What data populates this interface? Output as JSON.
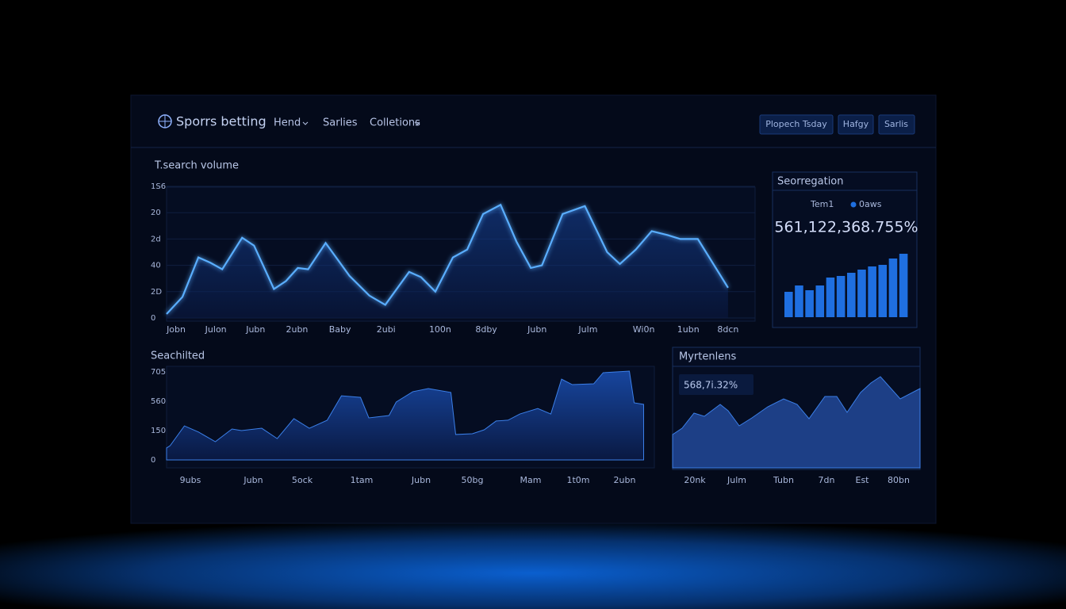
{
  "header": {
    "brand": "Sporrs betting",
    "nav": [
      "Hend",
      "Sarlies",
      "Colletions"
    ],
    "buttons": [
      "Plopech Tsday",
      "Hafgy",
      "Sarlis"
    ]
  },
  "chart_data": [
    {
      "type": "line",
      "title": "T.search volume",
      "color": "#5aaeff",
      "grid": true,
      "x": [
        0,
        1,
        2,
        2.75,
        3.5,
        4.75,
        5.5,
        6.75,
        7.5,
        8.25,
        8.9,
        10,
        11.5,
        12.75,
        13.75,
        15.25,
        16,
        16.9,
        18,
        18.9,
        19.9,
        21,
        22,
        22.9,
        23.6,
        24.9,
        26.3,
        27.7,
        28.5,
        29.5,
        30.5,
        31.5,
        32.3,
        33.4,
        35.3
      ],
      "values": [
        3,
        16,
        46,
        42,
        37,
        61,
        55,
        22,
        28,
        38,
        37,
        57,
        32,
        17,
        10,
        35,
        31,
        20,
        46,
        52,
        79,
        86,
        58,
        38,
        40,
        79,
        85,
        50,
        41,
        52,
        66,
        63,
        60,
        60,
        23
      ],
      "xlim": [
        0,
        37
      ],
      "ylim": [
        0,
        100
      ],
      "xticks": [
        {
          "value": 0.6,
          "label": "Jobn"
        },
        {
          "value": 3.1,
          "label": "Julon"
        },
        {
          "value": 5.6,
          "label": "Jubn"
        },
        {
          "value": 8.2,
          "label": "2ubn"
        },
        {
          "value": 10.9,
          "label": "Baby"
        },
        {
          "value": 13.8,
          "label": "2ubi"
        },
        {
          "value": 17.2,
          "label": "100n"
        },
        {
          "value": 20.1,
          "label": "8dby"
        },
        {
          "value": 23.3,
          "label": "Jubn"
        },
        {
          "value": 26.5,
          "label": "Julm"
        },
        {
          "value": 30,
          "label": "Wi0n"
        },
        {
          "value": 32.8,
          "label": "1ubn"
        },
        {
          "value": 35.3,
          "label": "8dcn"
        }
      ],
      "yticks": [
        0,
        {
          "value": 20,
          "label": "2D"
        },
        40,
        {
          "value": 60,
          "label": "2d"
        },
        {
          "value": 80,
          "label": "20"
        },
        {
          "value": 100,
          "label": "1S6"
        }
      ]
    },
    {
      "type": "bar",
      "title": "Seorregation",
      "legend": [
        "Tem1",
        "0aws"
      ],
      "annotation": "561,122,368.755%",
      "color": "#1f6fe0",
      "values": [
        32,
        40,
        34,
        40,
        50,
        52,
        56,
        60,
        64,
        66,
        74,
        80
      ]
    },
    {
      "type": "area",
      "title": "Seachilted",
      "color": "#2f6fd8",
      "x": [
        0,
        0.3,
        1.5,
        2.7,
        4.1,
        5.5,
        6.3,
        8,
        9.3,
        10.7,
        12,
        13.5,
        14.7,
        16.3,
        17,
        18.7,
        19.3,
        20.7,
        22,
        23.9,
        24.3,
        25.7,
        26.7,
        27.7,
        28.7,
        29.7,
        31.2,
        32.3,
        33.2,
        34.1,
        35.9,
        36.7,
        38.9,
        39.3,
        40.1
      ],
      "values": [
        61,
        73,
        174,
        142,
        93,
        158,
        150,
        162,
        109,
        211,
        162,
        203,
        328,
        320,
        215,
        227,
        296,
        349,
        365,
        345,
        130,
        134,
        154,
        199,
        203,
        235,
        263,
        235,
        413,
        385,
        389,
        446,
        454,
        292,
        284
      ],
      "xlim": [
        0,
        41
      ],
      "ylim": [
        0,
        480
      ],
      "xticks": [
        {
          "value": 2,
          "label": "9ubs"
        },
        {
          "value": 7.3,
          "label": "Jubn"
        },
        {
          "value": 11.4,
          "label": "5ock"
        },
        {
          "value": 16.4,
          "label": "1tam"
        },
        {
          "value": 21.4,
          "label": "Jubn"
        },
        {
          "value": 25.7,
          "label": "50bg"
        },
        {
          "value": 30.6,
          "label": "Mam"
        },
        {
          "value": 34.6,
          "label": "1t0m"
        },
        {
          "value": 38.5,
          "label": "2ubn"
        }
      ],
      "yticks": [
        0,
        150,
        {
          "value": 300,
          "label": "560"
        },
        {
          "value": 450,
          "label": "705"
        }
      ]
    },
    {
      "type": "area",
      "title": "Myrtenlens",
      "annotation": "568,7i.32%",
      "color": "#1d3f86",
      "x": [
        0,
        1.2,
        2.7,
        4,
        6,
        7,
        8.4,
        10,
        12,
        14,
        15.7,
        17.2,
        19.2,
        20.7,
        22,
        23.7,
        25,
        26.2,
        28.7,
        31.2
      ],
      "values": [
        42,
        50,
        69,
        65,
        80,
        72,
        53,
        63,
        77,
        87,
        80,
        62,
        90,
        90,
        70,
        95,
        107,
        115,
        87,
        100
      ],
      "xlim": [
        0,
        31.2
      ],
      "xticks": [
        {
          "value": 2.8,
          "label": "20nk"
        },
        {
          "value": 8.1,
          "label": "Julm"
        },
        {
          "value": 14,
          "label": "Tubn"
        },
        {
          "value": 19.4,
          "label": "7dn"
        },
        {
          "value": 23.9,
          "label": "Est"
        },
        {
          "value": 28.5,
          "label": "80bn"
        }
      ]
    }
  ]
}
